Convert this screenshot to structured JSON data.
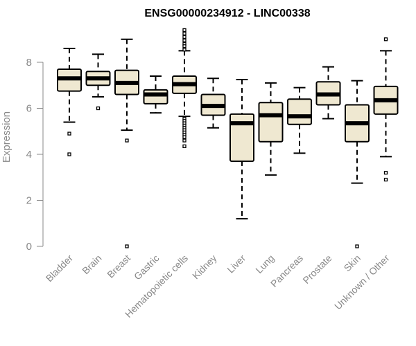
{
  "chart_data": {
    "type": "box",
    "title": "ENSG00000234912 - LINC00338",
    "ylabel": "Expression",
    "ylim": [
      0,
      9.6
    ],
    "yticks": [
      0,
      2,
      4,
      6,
      8
    ],
    "box_fill": "#efe8d1",
    "categories": [
      "Bladder",
      "Brain",
      "Breast",
      "Gastric",
      "Hematopoietic cells",
      "Kidney",
      "Liver",
      "Lung",
      "Pancreas",
      "Prostate",
      "Skin",
      "Unknown / Other"
    ],
    "boxes": [
      {
        "whisker_low": 5.4,
        "q1": 6.75,
        "median": 7.3,
        "q3": 7.7,
        "whisker_high": 8.6,
        "outliers": [
          4.9,
          4.0
        ]
      },
      {
        "whisker_low": 6.5,
        "q1": 7.0,
        "median": 7.3,
        "q3": 7.6,
        "whisker_high": 8.35,
        "outliers": [
          6.0
        ]
      },
      {
        "whisker_low": 5.05,
        "q1": 6.6,
        "median": 7.1,
        "q3": 7.65,
        "whisker_high": 9.0,
        "outliers": [
          4.6,
          0.0
        ]
      },
      {
        "whisker_low": 5.8,
        "q1": 6.2,
        "median": 6.6,
        "q3": 6.8,
        "whisker_high": 7.4,
        "outliers": []
      },
      {
        "whisker_low": 5.65,
        "q1": 6.65,
        "median": 7.05,
        "q3": 7.4,
        "whisker_high": 8.5,
        "outliers": [
          9.4,
          9.25,
          9.1,
          8.95,
          8.8,
          8.7,
          8.55,
          5.55,
          5.45,
          5.35,
          5.25,
          5.15,
          5.05,
          4.95,
          4.85,
          4.75,
          4.6,
          4.35
        ]
      },
      {
        "whisker_low": 5.15,
        "q1": 5.7,
        "median": 6.1,
        "q3": 6.6,
        "whisker_high": 7.3,
        "outliers": []
      },
      {
        "whisker_low": 1.2,
        "q1": 3.7,
        "median": 5.35,
        "q3": 5.75,
        "whisker_high": 7.25,
        "outliers": []
      },
      {
        "whisker_low": 3.1,
        "q1": 4.55,
        "median": 5.7,
        "q3": 6.25,
        "whisker_high": 7.1,
        "outliers": []
      },
      {
        "whisker_low": 4.05,
        "q1": 5.3,
        "median": 5.65,
        "q3": 6.4,
        "whisker_high": 6.9,
        "outliers": []
      },
      {
        "whisker_low": 5.55,
        "q1": 6.15,
        "median": 6.6,
        "q3": 7.15,
        "whisker_high": 7.8,
        "outliers": []
      },
      {
        "whisker_low": 2.75,
        "q1": 4.55,
        "median": 5.35,
        "q3": 6.15,
        "whisker_high": 7.2,
        "outliers": [
          0.0
        ]
      },
      {
        "whisker_low": 3.9,
        "q1": 5.75,
        "median": 6.35,
        "q3": 6.95,
        "whisker_high": 8.5,
        "outliers": [
          9.0,
          3.2,
          2.9
        ]
      }
    ]
  }
}
